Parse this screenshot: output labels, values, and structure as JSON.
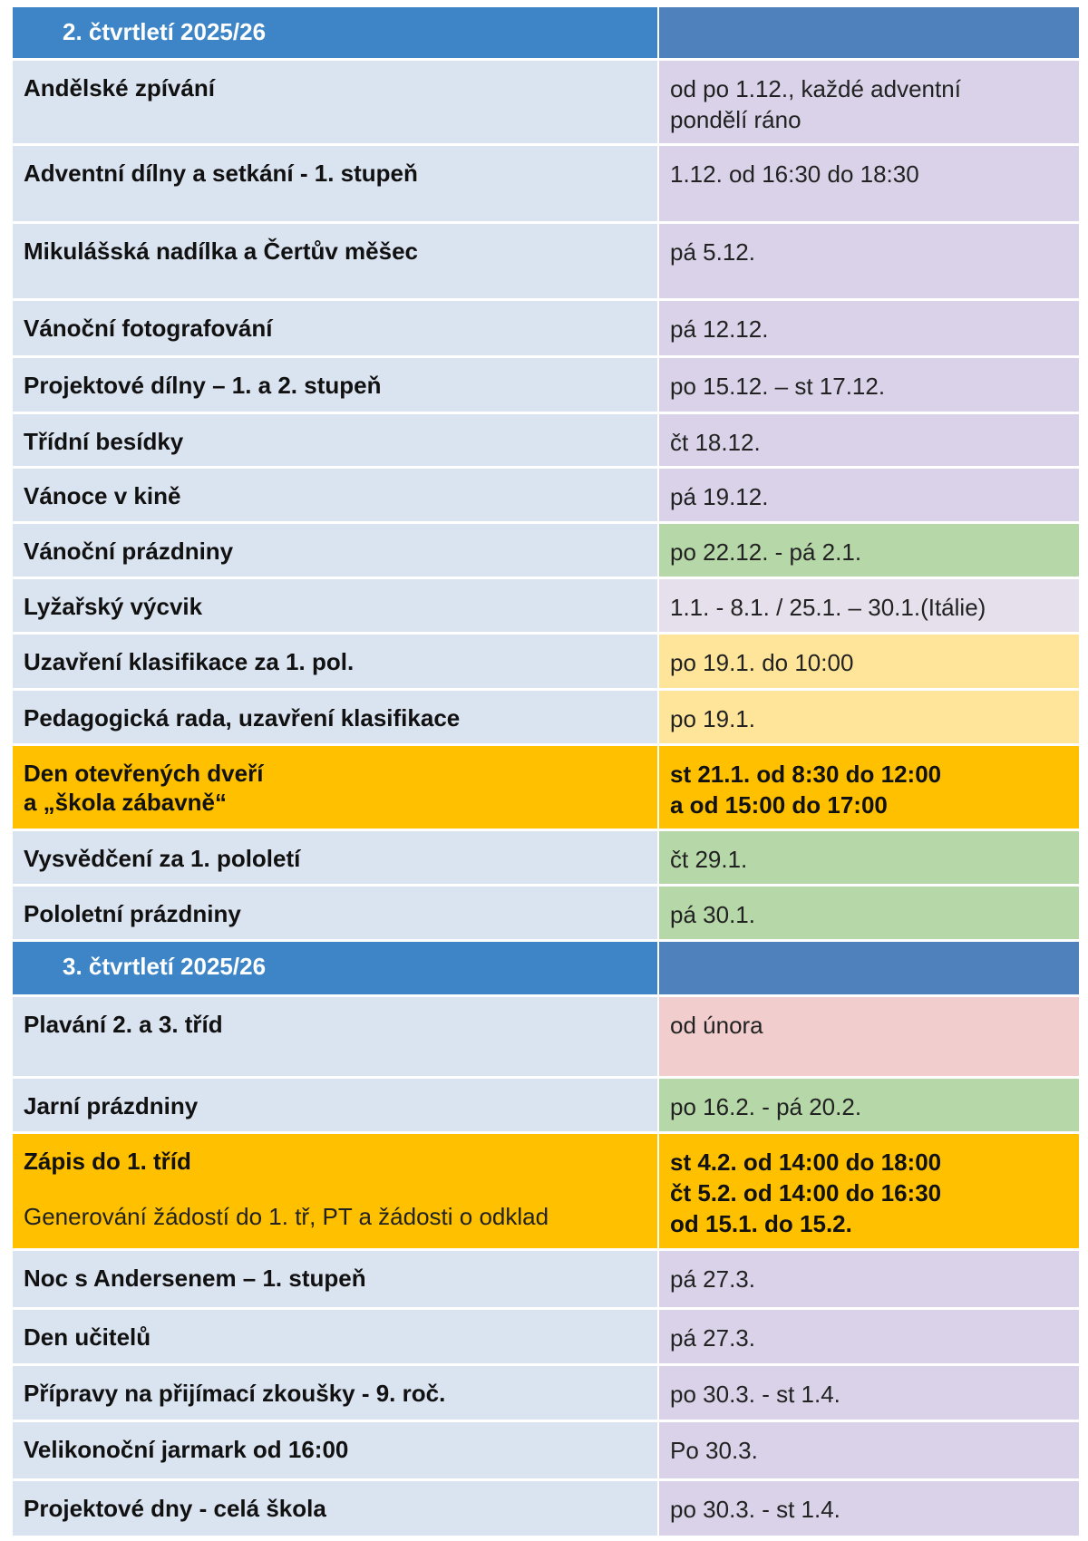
{
  "sections": [
    {
      "title": "2.  čtvrtletí  2025/26",
      "rows": [
        {
          "event": "Andělské zpívání",
          "date": [
            "od po 1.12., každé adventní",
            "pondělí ráno"
          ]
        },
        {
          "event": "Adventní dílny a setkání - 1. stupeň",
          "date": [
            "1.12. od 16:30 do 18:30"
          ]
        },
        {
          "event": "Mikulášská nadílka a Čertův měšec",
          "date": [
            "pá 5.12."
          ]
        },
        {
          "event": "Vánoční fotografování",
          "date": [
            "pá 12.12."
          ]
        },
        {
          "event": "Projektové dílny – 1. a 2. stupeň",
          "date": [
            "po 15.12. – st 17.12."
          ]
        },
        {
          "event": "Třídní besídky",
          "date": [
            "čt 18.12."
          ]
        },
        {
          "event": "Vánoce v kině",
          "date": [
            "pá 19.12."
          ]
        },
        {
          "event": "Vánoční prázdniny",
          "date": [
            "po 22.12. - pá 2.1."
          ]
        },
        {
          "event": "Lyžařský výcvik",
          "date": [
            "1.1. - 8.1. / 25.1. – 30.1.(Itálie)"
          ]
        },
        {
          "event": "Uzavření klasifikace za 1. pol.",
          "date": [
            "po 19.1. do 10:00"
          ]
        },
        {
          "event": "Pedagogická rada, uzavření klasifikace",
          "date": [
            "po 19.1."
          ]
        },
        {
          "event": "Den otevřených dveří\na „škola zábavně“",
          "date": [
            "st 21.1. od 8:30  do 12:00",
            "a od 15:00 do 17:00"
          ]
        },
        {
          "event": "Vysvědčení za 1. pololetí",
          "date": [
            "čt 29.1."
          ]
        },
        {
          "event": "Pololetní prázdniny",
          "date": [
            "pá 30.1."
          ]
        }
      ]
    },
    {
      "title": "3.  čtvrtletí  2025/26",
      "rows": [
        {
          "event": "Plavání 2. a 3. tříd",
          "date": [
            "od února"
          ]
        },
        {
          "event": "Jarní prázdniny",
          "date": [
            "po 16.2. - pá 20.2."
          ]
        },
        {
          "event": "Zápis do 1. tříd",
          "note": "Generování žádostí do 1. tř, PT a žádosti o odklad",
          "date": [
            "st 4.2. od 14:00 do 18:00",
            "čt 5.2. od 14:00 do 16:30",
            "od 15.1. do 15.2."
          ]
        },
        {
          "event": "Noc s Andersenem – 1. stupeň",
          "date": [
            "pá 27.3."
          ]
        },
        {
          "event": "Den učitelů",
          "date": [
            "pá 27.3."
          ]
        },
        {
          "event": "Přípravy na přijímací zkoušky - 9. roč.",
          "date": [
            "po 30.3. - st 1.4."
          ]
        },
        {
          "event": "Velikonoční jarmark od 16:00",
          "date": [
            "Po 30.3."
          ]
        },
        {
          "event": "Projektové dny - celá škola",
          "date": [
            "po 30.3. - st 1.4."
          ]
        }
      ]
    }
  ],
  "colors": {
    "header_left": "#3d85c6",
    "header_right": "#4f81bd",
    "event_bg": "#dae3f0",
    "date_bg": "#d9d2e8",
    "holiday": "#b6d7a8",
    "classification": "#ffe599",
    "highlight": "#ffc000",
    "swimming": "#f2cdcd",
    "ski": "#e5e0ec"
  }
}
